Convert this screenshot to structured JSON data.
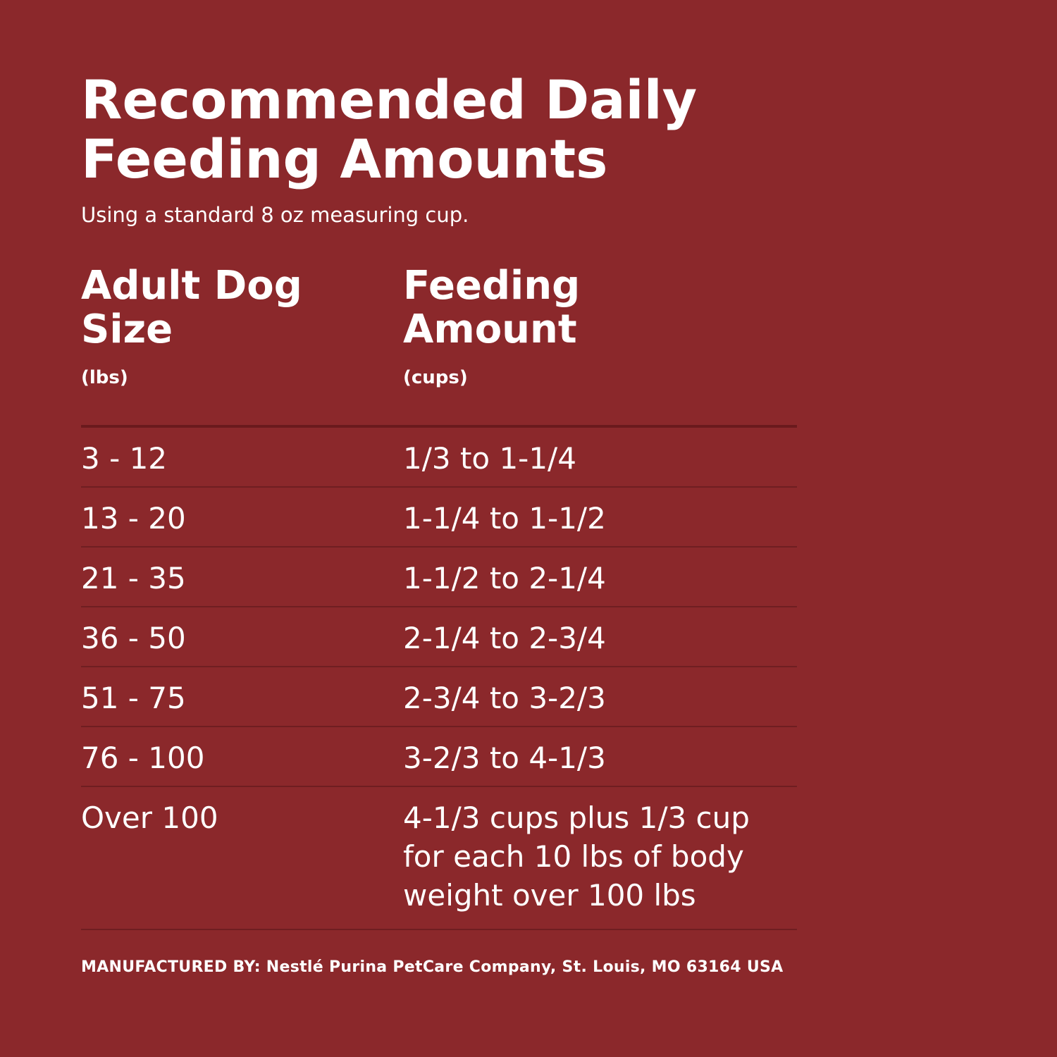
{
  "header": {
    "title": "Recommended Daily Feeding Amounts",
    "subtitle": "Using a standard 8 oz measuring cup."
  },
  "table": {
    "columns": [
      {
        "title": "Adult Dog Size",
        "unit": "(lbs)"
      },
      {
        "title": "Feeding Amount",
        "unit": "(cups)"
      }
    ],
    "rows": [
      [
        "3 - 12",
        "1/3 to 1-1/4"
      ],
      [
        "13 - 20",
        "1-1/4 to 1-1/2"
      ],
      [
        "21 - 35",
        "1-1/2 to 2-1/4"
      ],
      [
        "36 - 50",
        "2-1/4 to 2-3/4"
      ],
      [
        "51 - 75",
        "2-3/4 to 3-2/3"
      ],
      [
        "76 - 100",
        "3-2/3 to 4-1/3"
      ],
      [
        "Over 100",
        "4-1/3 cups plus 1/3 cup for each 10 lbs of body weight over 100 lbs"
      ]
    ]
  },
  "footer": {
    "text": "MANUFACTURED BY: Nestlé Purina PetCare Company, St. Louis, MO 63164 USA"
  }
}
